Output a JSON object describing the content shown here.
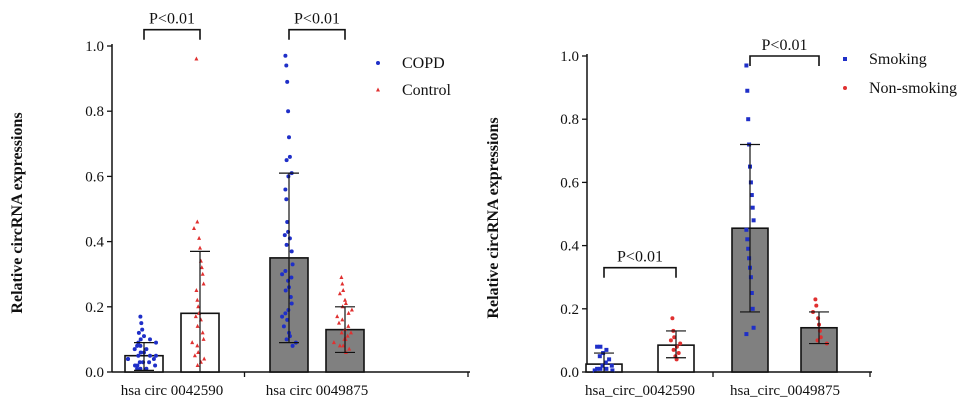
{
  "colors": {
    "group_a": "#1f2fc8",
    "group_b": "#e03030",
    "grey_bar": "#808080",
    "white_bar": "#ffffff"
  },
  "chart_data": [
    {
      "type": "bar",
      "ylabel": "Relative circRNA expressions",
      "ylim": [
        0,
        1.0
      ],
      "yticks": [
        "0.0",
        "0.2",
        "0.4",
        "0.6",
        "0.8",
        "1.0"
      ],
      "legend": [
        {
          "name": "COPD",
          "marker": "circle",
          "color": "#1f2fc8"
        },
        {
          "name": "Control",
          "marker": "triangle",
          "color": "#e03030"
        }
      ],
      "legend_position": "top-right",
      "categories": [
        "hsa_circ_0042590",
        "hsa_circ_0049875"
      ],
      "category_labels": [
        "hsa circ 0042590",
        "hsa circ 0049875"
      ],
      "bars": [
        {
          "category": "hsa_circ_0042590",
          "group": "COPD",
          "fill": "white",
          "mean": 0.05,
          "sd_low": 0.005,
          "sd_high": 0.09,
          "points": [
            0.17,
            0.15,
            0.13,
            0.12,
            0.11,
            0.1,
            0.1,
            0.09,
            0.09,
            0.08,
            0.08,
            0.07,
            0.07,
            0.06,
            0.06,
            0.05,
            0.05,
            0.05,
            0.04,
            0.04,
            0.04,
            0.03,
            0.03,
            0.03,
            0.02,
            0.02,
            0.02,
            0.01,
            0.01,
            0.01
          ]
        },
        {
          "category": "hsa_circ_0042590",
          "group": "Control",
          "fill": "white",
          "mean": 0.18,
          "sd_low": 0.0,
          "sd_high": 0.37,
          "points": [
            0.96,
            0.46,
            0.44,
            0.41,
            0.38,
            0.34,
            0.32,
            0.3,
            0.27,
            0.25,
            0.22,
            0.2,
            0.18,
            0.17,
            0.16,
            0.14,
            0.12,
            0.1,
            0.09,
            0.08,
            0.06,
            0.05,
            0.04,
            0.03,
            0.02
          ]
        },
        {
          "category": "hsa_circ_0049875",
          "group": "COPD",
          "fill": "grey",
          "mean": 0.35,
          "sd_low": 0.09,
          "sd_high": 0.61,
          "points": [
            0.97,
            0.94,
            0.89,
            0.8,
            0.72,
            0.66,
            0.65,
            0.61,
            0.6,
            0.56,
            0.53,
            0.46,
            0.43,
            0.42,
            0.41,
            0.39,
            0.37,
            0.33,
            0.31,
            0.3,
            0.29,
            0.28,
            0.26,
            0.25,
            0.23,
            0.21,
            0.19,
            0.18,
            0.17,
            0.16,
            0.14,
            0.12,
            0.11,
            0.1,
            0.09,
            0.08
          ]
        },
        {
          "category": "hsa_circ_0049875",
          "group": "Control",
          "fill": "grey",
          "mean": 0.13,
          "sd_low": 0.06,
          "sd_high": 0.2,
          "points": [
            0.29,
            0.27,
            0.25,
            0.24,
            0.22,
            0.21,
            0.2,
            0.19,
            0.18,
            0.17,
            0.16,
            0.15,
            0.14,
            0.13,
            0.12,
            0.12,
            0.11,
            0.1,
            0.1,
            0.09,
            0.08,
            0.08,
            0.07,
            0.06
          ]
        }
      ],
      "annotations": [
        {
          "text": "P<0.01",
          "between": [
            "hsa_circ_0042590 COPD",
            "hsa_circ_0042590 Control"
          ],
          "y": 1.05
        },
        {
          "text": "P<0.01",
          "between": [
            "hsa_circ_0049875 COPD",
            "hsa_circ_0049875 Control"
          ],
          "y": 1.05
        }
      ]
    },
    {
      "type": "bar",
      "ylabel": "Relative circRNA expressions",
      "ylim": [
        0,
        1.0
      ],
      "yticks": [
        "0.0",
        "0.2",
        "0.4",
        "0.6",
        "0.8",
        "1.0"
      ],
      "legend": [
        {
          "name": "Smoking",
          "marker": "square",
          "color": "#1f2fc8"
        },
        {
          "name": "Non-smoking",
          "marker": "dot",
          "color": "#e03030"
        }
      ],
      "legend_position": "top-right",
      "categories": [
        "hsa_circ_0042590",
        "hsa_circ_0049875"
      ],
      "category_labels": [
        "hsa_circ_0042590",
        "hsa_circ_0049875"
      ],
      "bars": [
        {
          "category": "hsa_circ_0042590",
          "group": "Smoking",
          "fill": "white",
          "mean": 0.025,
          "sd_low": 0.0,
          "sd_high": 0.06,
          "points": [
            0.08,
            0.08,
            0.07,
            0.06,
            0.05,
            0.04,
            0.03,
            0.02,
            0.02,
            0.01,
            0.01,
            0.01,
            0.005,
            0.005
          ]
        },
        {
          "category": "hsa_circ_0042590",
          "group": "Non-smoking",
          "fill": "white",
          "mean": 0.085,
          "sd_low": 0.045,
          "sd_high": 0.13,
          "points": [
            0.17,
            0.13,
            0.11,
            0.1,
            0.09,
            0.08,
            0.07,
            0.06,
            0.05,
            0.04
          ]
        },
        {
          "category": "hsa_circ_0049875",
          "group": "Smoking",
          "fill": "grey",
          "mean": 0.455,
          "sd_low": 0.19,
          "sd_high": 0.72,
          "points": [
            0.97,
            0.89,
            0.8,
            0.72,
            0.65,
            0.6,
            0.56,
            0.52,
            0.48,
            0.45,
            0.42,
            0.39,
            0.36,
            0.33,
            0.3,
            0.25,
            0.2,
            0.14,
            0.12
          ]
        },
        {
          "category": "hsa_circ_0049875",
          "group": "Non-smoking",
          "fill": "grey",
          "mean": 0.14,
          "sd_low": 0.09,
          "sd_high": 0.19,
          "points": [
            0.23,
            0.21,
            0.19,
            0.17,
            0.15,
            0.13,
            0.11,
            0.1,
            0.09
          ]
        }
      ],
      "annotations": [
        {
          "text": "P<0.01",
          "between": [
            "hsa_circ_0042590 Smoking",
            "hsa_circ_0042590 Non-smoking"
          ],
          "y": 0.33
        },
        {
          "text": "P<0.01",
          "between": [
            "hsa_circ_0049875 Smoking",
            "hsa_circ_0049875 Non-smoking"
          ],
          "y": 1.0
        }
      ]
    }
  ]
}
